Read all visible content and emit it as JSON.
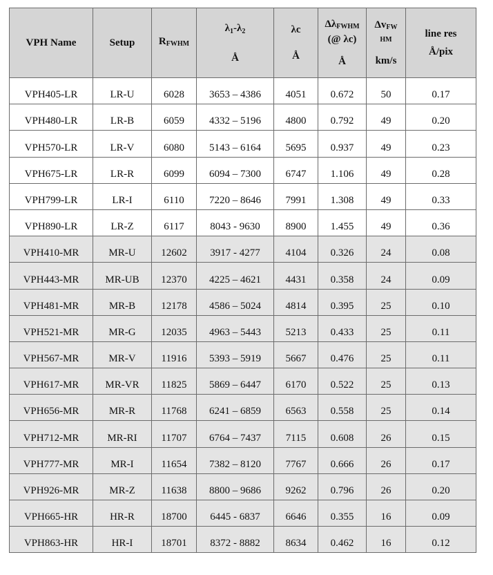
{
  "headers": {
    "vph_name": "VPH Name",
    "setup": "Setup",
    "r_main": "R",
    "r_sub": "FWHM",
    "lambda_main": "λ",
    "lambda_sub1": "1",
    "lambda_dash": "-λ",
    "lambda_sub2": "2",
    "lambda_unit": "Å",
    "lc_main": "λc",
    "lc_unit": "Å",
    "dl_main": "Δλ",
    "dl_sub": "FWHM",
    "dl_at": "(@ λc)",
    "dl_unit": "Å",
    "dv_main": "Δv",
    "dv_sub1": "FW",
    "dv_sub2": "HM",
    "dv_unit": "km/s",
    "res_main": "line res",
    "res_unit": "Å/pix"
  },
  "rows": [
    {
      "name": "VPH405-LR",
      "setup": "LR-U",
      "r": "6028",
      "range": "3653 – 4386",
      "lc": "4051",
      "dl": "0.672",
      "dv": "50",
      "res": "0.17",
      "group": "lr"
    },
    {
      "name": "VPH480-LR",
      "setup": "LR-B",
      "r": "6059",
      "range": "4332 – 5196",
      "lc": "4800",
      "dl": "0.792",
      "dv": "49",
      "res": "0.20",
      "group": "lr"
    },
    {
      "name": "VPH570-LR",
      "setup": "LR-V",
      "r": "6080",
      "range": "5143 – 6164",
      "lc": "5695",
      "dl": "0.937",
      "dv": "49",
      "res": "0.23",
      "group": "lr"
    },
    {
      "name": "VPH675-LR",
      "setup": "LR-R",
      "r": "6099",
      "range": "6094 – 7300",
      "lc": "6747",
      "dl": "1.106",
      "dv": "49",
      "res": "0.28",
      "group": "lr"
    },
    {
      "name": "VPH799-LR",
      "setup": "LR-I",
      "r": "6110",
      "range": "7220 – 8646",
      "lc": "7991",
      "dl": "1.308",
      "dv": "49",
      "res": "0.33",
      "group": "lr"
    },
    {
      "name": "VPH890-LR",
      "setup": "LR-Z",
      "r": "6117",
      "range": "8043 - 9630",
      "lc": "8900",
      "dl": "1.455",
      "dv": "49",
      "res": "0.36",
      "group": "lr"
    },
    {
      "name": "VPH410-MR",
      "setup": "MR-U",
      "r": "12602",
      "range": "3917 - 4277",
      "lc": "4104",
      "dl": "0.326",
      "dv": "24",
      "res": "0.08",
      "group": "mr"
    },
    {
      "name": "VPH443-MR",
      "setup": "MR-UB",
      "r": "12370",
      "range": "4225 – 4621",
      "lc": "4431",
      "dl": "0.358",
      "dv": "24",
      "res": "0.09",
      "group": "mr"
    },
    {
      "name": "VPH481-MR",
      "setup": "MR-B",
      "r": "12178",
      "range": "4586 – 5024",
      "lc": "4814",
      "dl": "0.395",
      "dv": "25",
      "res": "0.10",
      "group": "mr"
    },
    {
      "name": "VPH521-MR",
      "setup": "MR-G",
      "r": "12035",
      "range": "4963 – 5443",
      "lc": "5213",
      "dl": "0.433",
      "dv": "25",
      "res": "0.11",
      "group": "mr"
    },
    {
      "name": "VPH567-MR",
      "setup": "MR-V",
      "r": "11916",
      "range": "5393 – 5919",
      "lc": "5667",
      "dl": "0.476",
      "dv": "25",
      "res": "0.11",
      "group": "mr"
    },
    {
      "name": "VPH617-MR",
      "setup": "MR-VR",
      "r": "11825",
      "range": "5869 – 6447",
      "lc": "6170",
      "dl": "0.522",
      "dv": "25",
      "res": "0.13",
      "group": "mr"
    },
    {
      "name": "VPH656-MR",
      "setup": "MR-R",
      "r": "11768",
      "range": "6241 – 6859",
      "lc": "6563",
      "dl": "0.558",
      "dv": "25",
      "res": "0.14",
      "group": "mr"
    },
    {
      "name": "VPH712-MR",
      "setup": "MR-RI",
      "r": "11707",
      "range": "6764 – 7437",
      "lc": "7115",
      "dl": "0.608",
      "dv": "26",
      "res": "0.15",
      "group": "mr"
    },
    {
      "name": "VPH777-MR",
      "setup": "MR-I",
      "r": "11654",
      "range": "7382 – 8120",
      "lc": "7767",
      "dl": "0.666",
      "dv": "26",
      "res": "0.17",
      "group": "mr"
    },
    {
      "name": "VPH926-MR",
      "setup": "MR-Z",
      "r": "11638",
      "range": "8800 – 9686",
      "lc": "9262",
      "dl": "0.796",
      "dv": "26",
      "res": "0.20",
      "group": "mr"
    },
    {
      "name": "VPH665-HR",
      "setup": "HR-R",
      "r": "18700",
      "range": "6445 - 6837",
      "lc": "6646",
      "dl": "0.355",
      "dv": "16",
      "res": "0.09",
      "group": "hr"
    },
    {
      "name": "VPH863-HR",
      "setup": "HR-I",
      "r": "18701",
      "range": "8372 - 8882",
      "lc": "8634",
      "dl": "0.462",
      "dv": "16",
      "res": "0.12",
      "group": "hr"
    }
  ]
}
